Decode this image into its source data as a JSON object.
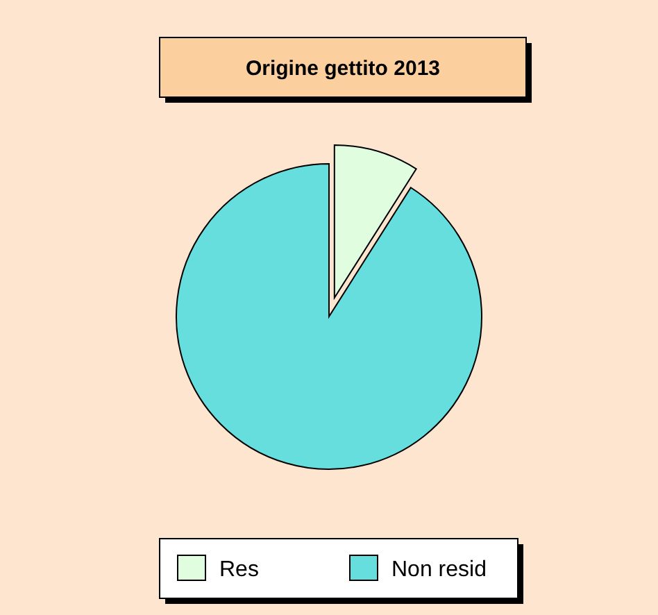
{
  "chart_data": {
    "type": "pie",
    "title": "Origine gettito 2013",
    "categories": [
      "Res",
      "Non resid"
    ],
    "values": [
      9,
      91
    ],
    "colors": [
      "#e0fde0",
      "#66dede"
    ],
    "legend": "bottom"
  }
}
